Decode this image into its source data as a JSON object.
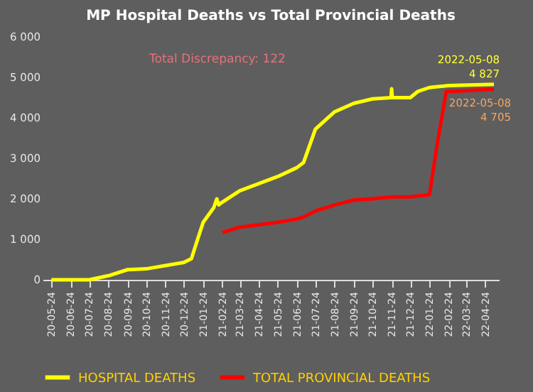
{
  "chart_data": {
    "type": "line",
    "title": "MP Hospital Deaths vs Total Provincial Deaths",
    "xlim": [
      "2020-05-10",
      "2022-05-16"
    ],
    "xticks": [
      {
        "value": "2020-05-24",
        "label": "20-05-24"
      },
      {
        "value": "2020-06-24",
        "label": "20-06-24"
      },
      {
        "value": "2020-07-24",
        "label": "20-07-24"
      },
      {
        "value": "2020-08-24",
        "label": "20-08-24"
      },
      {
        "value": "2020-09-24",
        "label": "20-09-24"
      },
      {
        "value": "2020-10-24",
        "label": "20-10-24"
      },
      {
        "value": "2020-11-24",
        "label": "20-11-24"
      },
      {
        "value": "2020-12-24",
        "label": "20-12-24"
      },
      {
        "value": "2021-01-24",
        "label": "21-01-24"
      },
      {
        "value": "2021-02-24",
        "label": "21-02-24"
      },
      {
        "value": "2021-03-24",
        "label": "21-03-24"
      },
      {
        "value": "2021-04-24",
        "label": "21-04-24"
      },
      {
        "value": "2021-05-24",
        "label": "21-05-24"
      },
      {
        "value": "2021-06-24",
        "label": "21-06-24"
      },
      {
        "value": "2021-07-24",
        "label": "21-07-24"
      },
      {
        "value": "2021-08-24",
        "label": "21-08-24"
      },
      {
        "value": "2021-09-24",
        "label": "21-09-24"
      },
      {
        "value": "2021-10-24",
        "label": "21-10-24"
      },
      {
        "value": "2021-11-24",
        "label": "21-11-24"
      },
      {
        "value": "2021-12-24",
        "label": "21-12-24"
      },
      {
        "value": "2022-01-24",
        "label": "22-01-24"
      },
      {
        "value": "2022-02-24",
        "label": "22-02-24"
      },
      {
        "value": "2022-03-24",
        "label": "22-03-24"
      },
      {
        "value": "2022-04-24",
        "label": "22-04-24"
      }
    ],
    "ylim": [
      0,
      6000
    ],
    "yticks": [
      0,
      {
        "value": 1000,
        "label": "1 000"
      },
      {
        "value": 2000,
        "label": "2 000"
      },
      {
        "value": 3000,
        "label": "3 000"
      },
      {
        "value": 4000,
        "label": "4 000"
      },
      {
        "value": 5000,
        "label": "5 000"
      },
      {
        "value": 6000,
        "label": "6 000"
      }
    ],
    "grid": false,
    "legend": "bottom",
    "series": [
      {
        "name": "HOSPITAL DEATHS",
        "color": "#ffff00",
        "x": [
          "2020-05-24",
          "2020-07-24",
          "2020-08-24",
          "2020-09-24",
          "2020-10-24",
          "2020-11-24",
          "2020-12-24",
          "2021-01-05",
          "2021-01-15",
          "2021-01-24",
          "2021-02-10",
          "2021-02-15",
          "2021-02-18",
          "2021-02-24",
          "2021-03-24",
          "2021-05-24",
          "2021-06-24",
          "2021-07-05",
          "2021-07-24",
          "2021-08-24",
          "2021-09-24",
          "2021-10-24",
          "2021-11-23",
          "2021-11-24",
          "2021-11-25",
          "2021-12-24",
          "2022-01-05",
          "2022-01-24",
          "2022-02-24",
          "2022-05-08"
        ],
        "values": [
          0,
          0,
          100,
          250,
          270,
          350,
          430,
          520,
          1000,
          1420,
          1780,
          2000,
          1850,
          1920,
          2200,
          2550,
          2770,
          2900,
          3720,
          4150,
          4360,
          4470,
          4500,
          4720,
          4500,
          4500,
          4650,
          4750,
          4800,
          4827
        ]
      },
      {
        "name": "TOTAL PROVINCIAL DEATHS",
        "color": "#ff0000",
        "x": [
          "2021-02-24",
          "2021-03-24",
          "2021-05-24",
          "2021-06-24",
          "2021-07-05",
          "2021-07-24",
          "2021-08-24",
          "2021-09-24",
          "2021-10-24",
          "2021-11-24",
          "2021-12-24",
          "2022-01-24",
          "2022-02-05",
          "2022-02-20",
          "2022-05-08"
        ],
        "values": [
          1170,
          1300,
          1420,
          1500,
          1550,
          1700,
          1850,
          1970,
          2000,
          2050,
          2050,
          2100,
          3300,
          4650,
          4705
        ]
      }
    ],
    "annotations": [
      {
        "text": "Total Discrepancy:  122"
      },
      {
        "text": "2022-05-08\n4 827",
        "x": "2022-05-08",
        "y": 4827
      },
      {
        "text": "2022-05-08\n4 705",
        "x": "2022-05-08",
        "y": 4705
      }
    ]
  }
}
